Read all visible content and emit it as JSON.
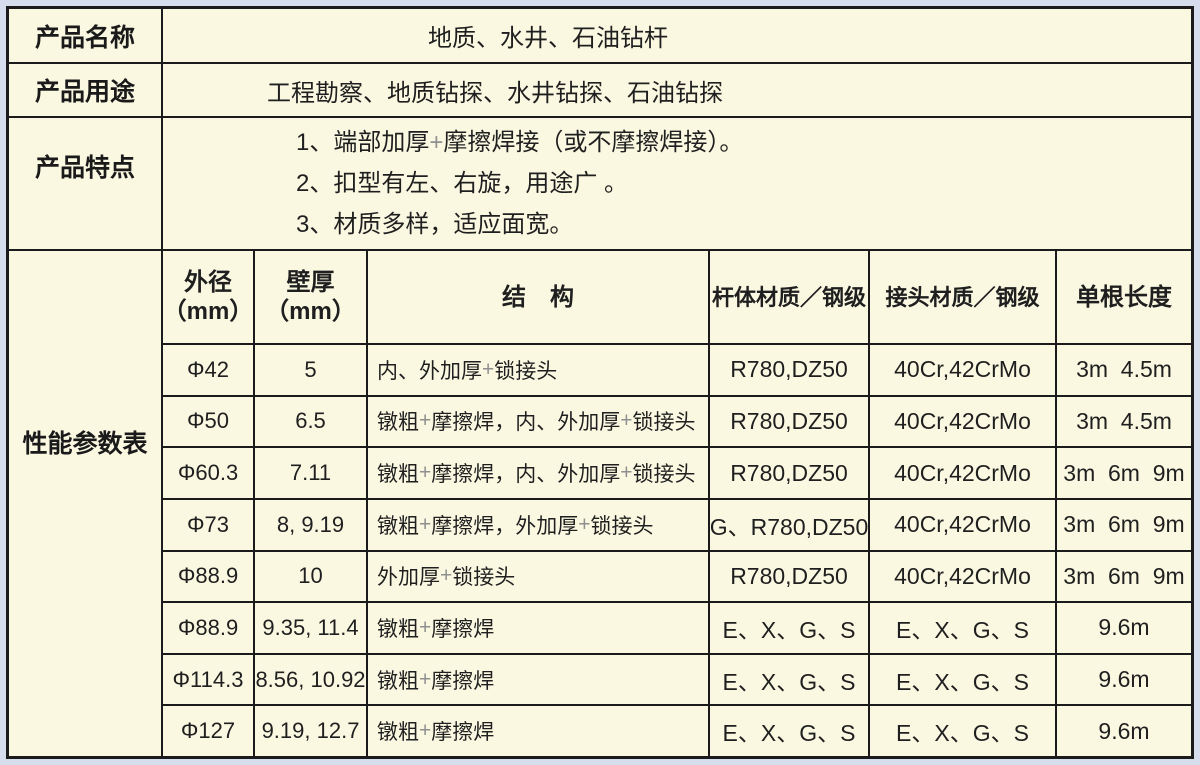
{
  "colors": {
    "page_margin": "#d6deed",
    "cell_background": "#fbf8e2",
    "border": "#1b1b1b",
    "text": "#1f1f1f",
    "plus_sign": "#8f8f8f"
  },
  "info_rows": [
    {
      "label": "产品名称",
      "content": "地质、水井、石油钻杆"
    },
    {
      "label": "产品用途",
      "content": "工程勘察、地质钻探、水井钻探、石油钻探"
    }
  ],
  "features": {
    "label": "产品特点",
    "lines": [
      "1、端部加厚+摩擦焊接（或不摩擦焊接）。",
      "2、扣型有左、右旋，用途广 。",
      "3、材质多样，适应面宽。"
    ]
  },
  "parameters": {
    "label": "性能参数表",
    "columns": [
      {
        "title": "外径",
        "unit": "（mm）"
      },
      {
        "title": "壁厚",
        "unit": "（mm）"
      },
      {
        "title": "结　构",
        "unit": ""
      },
      {
        "title": "杆体材质／钢级",
        "unit": ""
      },
      {
        "title": "接头材质／钢级",
        "unit": ""
      },
      {
        "title": "单根长度",
        "unit": ""
      }
    ],
    "rows": [
      [
        "Φ42",
        "5",
        "内、外加厚+锁接头",
        "R780,DZ50",
        "40Cr,42CrMo",
        "3m  4.5m"
      ],
      [
        "Φ50",
        "6.5",
        "镦粗+摩擦焊，内、外加厚+锁接头",
        "R780,DZ50",
        "40Cr,42CrMo",
        "3m  4.5m"
      ],
      [
        "Φ60.3",
        "7.11",
        "镦粗+摩擦焊，内、外加厚+锁接头",
        "R780,DZ50",
        "40Cr,42CrMo",
        "3m  6m  9m"
      ],
      [
        "Φ73",
        "8, 9.19",
        "镦粗+摩擦焊，外加厚+锁接头",
        "G、R780,DZ50",
        "40Cr,42CrMo",
        "3m  6m  9m"
      ],
      [
        "Φ88.9",
        "10",
        "外加厚+锁接头",
        "R780,DZ50",
        "40Cr,42CrMo",
        "3m  6m  9m"
      ],
      [
        "Φ88.9",
        "9.35, 11.4",
        "镦粗+摩擦焊",
        "E、X、G、S",
        "E、X、G、S",
        "9.6m"
      ],
      [
        "Φ114.3",
        "8.56, 10.92",
        "镦粗+摩擦焊",
        "E、X、G、S",
        "E、X、G、S",
        "9.6m"
      ],
      [
        "Φ127",
        "9.19, 12.7",
        "镦粗+摩擦焊",
        "E、X、G、S",
        "E、X、G、S",
        "9.6m"
      ]
    ]
  }
}
